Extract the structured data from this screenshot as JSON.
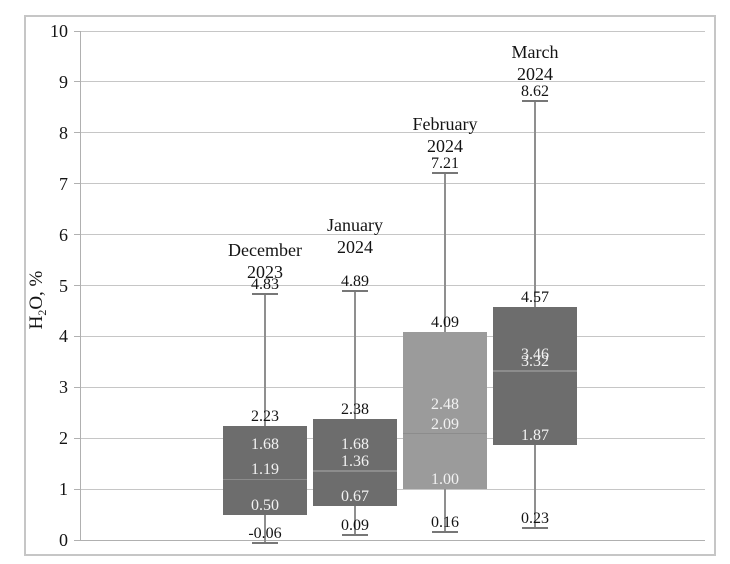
{
  "chart_data": {
    "type": "boxplot",
    "title": "",
    "xlabel": "",
    "ylabel": "H2O, %",
    "ylabel_parts": [
      "H",
      "2",
      "O, %"
    ],
    "ylim": [
      0,
      10
    ],
    "yticks": [
      10,
      9,
      8,
      7,
      6,
      5,
      4,
      3,
      2,
      1,
      0
    ],
    "grid": true,
    "legend": null,
    "categories": [
      "December 2023",
      "January 2024",
      "February 2024",
      "March 2024"
    ],
    "series": [
      {
        "label_lines": [
          "December",
          "2023"
        ],
        "max": 4.83,
        "q3": 2.23,
        "mean": 1.68,
        "median": 1.19,
        "q1": 0.5,
        "min": -0.06,
        "shade": "dark"
      },
      {
        "label_lines": [
          "January",
          "2024"
        ],
        "max": 4.89,
        "q3": 2.38,
        "mean": 1.68,
        "median": 1.36,
        "q1": 0.67,
        "min": 0.09,
        "shade": "dark"
      },
      {
        "label_lines": [
          "February",
          "2024"
        ],
        "max": 7.21,
        "q3": 4.09,
        "mean": 2.48,
        "median": 2.09,
        "q1": 1.0,
        "min": 0.16,
        "shade": "light"
      },
      {
        "label_lines": [
          "March",
          "2024"
        ],
        "max": 8.62,
        "q3": 4.57,
        "mean": 3.46,
        "median": 3.32,
        "q1": 1.87,
        "min": 0.23,
        "shade": "dark"
      }
    ],
    "colors": {
      "box_dark": "#6d6d6d",
      "box_light": "#9b9b9b",
      "box_label_light": "#f2f2f2",
      "text": "#141414",
      "gridline": "#c6c6c6",
      "axis": "#b0b0b0",
      "whisker": "#8f8f8f",
      "whisker_cap": "#777777",
      "median_line": "#8c8c8c",
      "frame": "#c6c6c6"
    }
  }
}
